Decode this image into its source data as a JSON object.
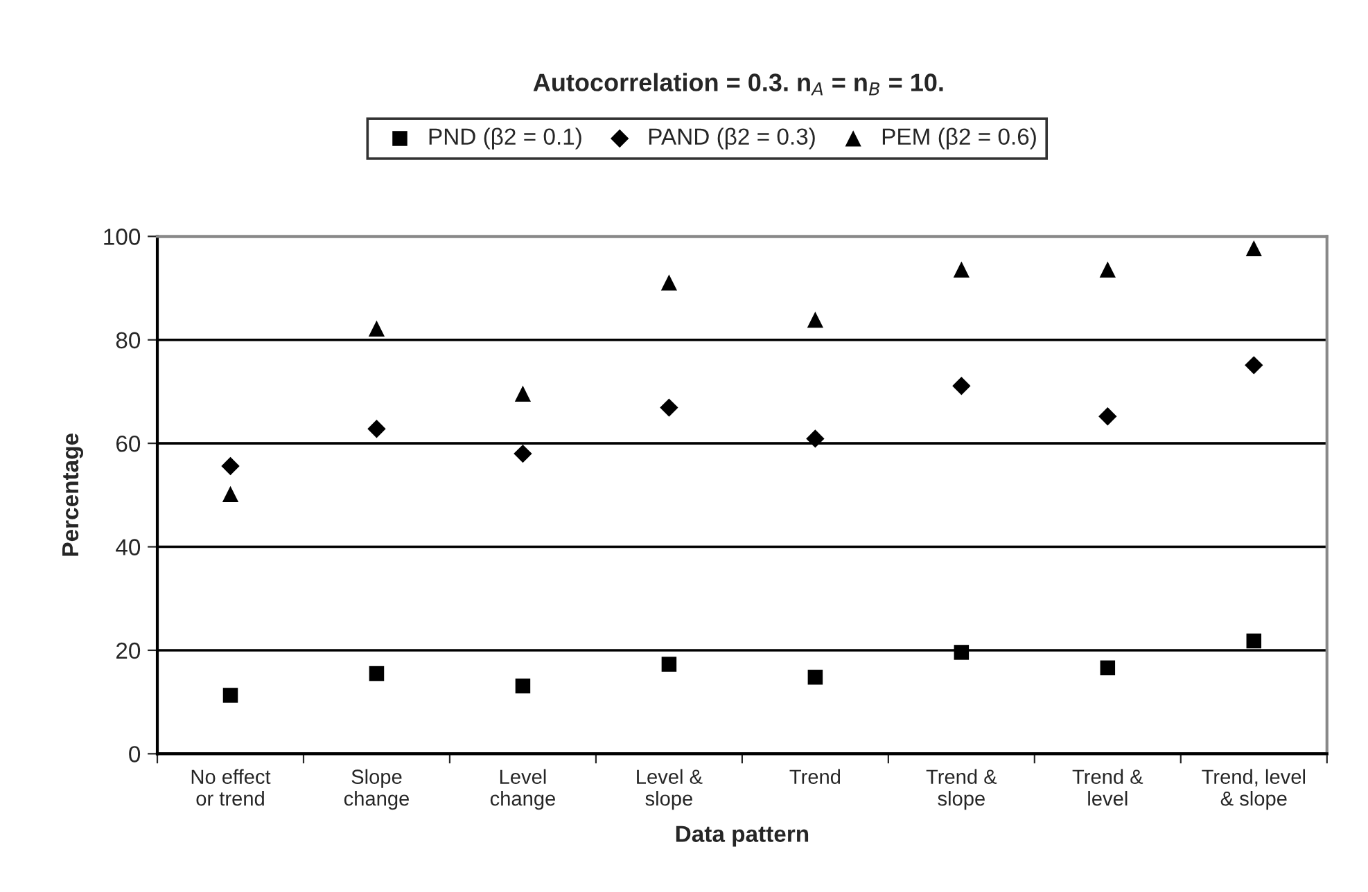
{
  "chart_data": {
    "type": "scatter",
    "title": "Autocorrelation = 0.3. n$_{A}$ = n$_{B}$ = 10.",
    "xlabel": "Data pattern",
    "ylabel": "Percentage",
    "categories": [
      "No effect\nor trend",
      "Slope\nchange",
      "Level\nchange",
      "Level &\nslope",
      "Trend",
      "Trend &\nslope",
      "Trend &\nlevel",
      "Trend, level\n& slope"
    ],
    "series": [
      {
        "name": "PND (β2 = 0.1)",
        "color": "#000000",
        "marker": "square",
        "values": [
          11.3,
          15.5,
          13.1,
          17.3,
          14.8,
          19.6,
          16.6,
          21.8
        ]
      },
      {
        "name": "PAND (β2 = 0.3)",
        "color": "#000000",
        "marker": "diamond",
        "values": [
          55.6,
          62.8,
          58.0,
          66.9,
          60.9,
          71.1,
          65.2,
          75.1
        ]
      },
      {
        "name": "PEM (β2 = 0.6)",
        "color": "#000000",
        "marker": "triangle",
        "values": [
          50.2,
          82.2,
          69.6,
          91.1,
          83.9,
          93.6,
          93.6,
          97.7
        ]
      }
    ],
    "ylim": [
      0,
      100
    ],
    "yticks": [
      0,
      20,
      40,
      60,
      80,
      100
    ],
    "grid": "y",
    "legend": "top"
  }
}
